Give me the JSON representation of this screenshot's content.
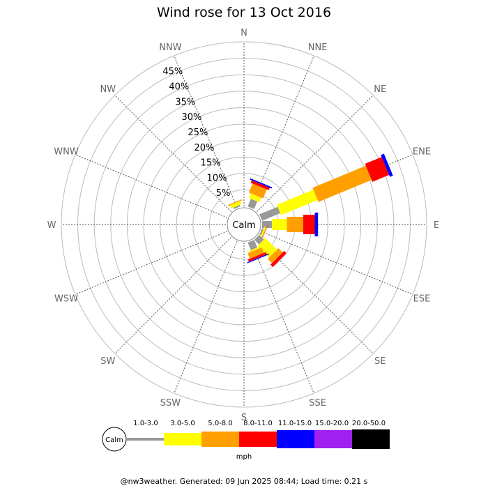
{
  "chart_data": {
    "type": "windrose",
    "title": "Wind rose for 13 Oct 2016",
    "directions": [
      "N",
      "NNE",
      "NE",
      "ENE",
      "E",
      "ESE",
      "SE",
      "SSE",
      "S",
      "SSW",
      "SW",
      "WSW",
      "W",
      "WNW",
      "NW",
      "NNW"
    ],
    "radial_ticks": [
      "5%",
      "10%",
      "15%",
      "20%",
      "25%",
      "30%",
      "35%",
      "40%",
      "45%"
    ],
    "radial_max": 50,
    "calm_label": "Calm",
    "unit_label": "mph",
    "bins": [
      {
        "label": "",
        "color": "#999999"
      },
      {
        "label": "1.0-3.0",
        "color": "#ffff00"
      },
      {
        "label": "3.0-5.0",
        "color": "#ff9f00"
      },
      {
        "label": "5.0-8.0",
        "color": "#ff0000"
      },
      {
        "label": "8.0-11.0",
        "color": "#0000ff"
      },
      {
        "label": "11.0-15.0",
        "color": "#a020f0"
      },
      {
        "label": "15.0-20.0",
        "color": "#000000"
      },
      {
        "label": "20.0-50.0",
        "color": ""
      }
    ],
    "series": [
      {
        "direction": "NNE",
        "cumulative": [
          2.5,
          4.0,
          7.0,
          7.8,
          8.2
        ]
      },
      {
        "direction": "ENE",
        "cumulative": [
          6.0,
          18.0,
          35.5,
          41.0,
          42.0
        ]
      },
      {
        "direction": "E",
        "cumulative": [
          3.0,
          7.5,
          12.5,
          16.0,
          17.0
        ]
      },
      {
        "direction": "ESE",
        "cumulative": [
          0.5,
          1.0,
          1.2,
          1.3
        ]
      },
      {
        "direction": "SE",
        "cumulative": [
          2.0,
          7.0,
          8.8,
          9.8
        ]
      },
      {
        "direction": "SSE",
        "cumulative": [
          2.5,
          3.0,
          4.8,
          5.5,
          5.8
        ]
      },
      {
        "direction": "NNW",
        "cumulative": [
          0.5,
          1.5,
          1.8
        ]
      }
    ]
  },
  "footer": "@nw3weather. Generated: 09 Jun 2025 08:44; Load time: 0.21 s"
}
